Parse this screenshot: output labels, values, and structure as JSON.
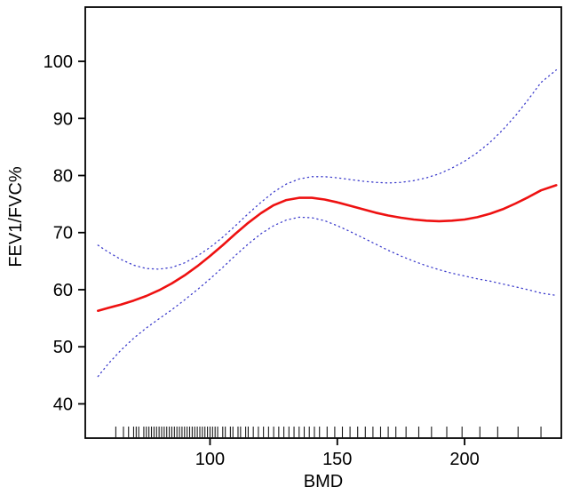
{
  "chart_data": {
    "type": "line",
    "title": "",
    "xlabel": "BMD",
    "ylabel": "FEV1/FVC%",
    "xlim": [
      51,
      238
    ],
    "ylim": [
      34,
      109.5
    ],
    "xticks": [
      100,
      150,
      200
    ],
    "yticks": [
      40,
      50,
      60,
      70,
      80,
      90,
      100
    ],
    "grid": false,
    "legend": "none",
    "x": [
      56,
      60,
      65,
      70,
      75,
      80,
      85,
      90,
      95,
      100,
      105,
      110,
      115,
      120,
      125,
      130,
      135,
      140,
      145,
      150,
      155,
      160,
      165,
      170,
      175,
      180,
      185,
      190,
      195,
      200,
      205,
      210,
      215,
      220,
      225,
      230,
      236
    ],
    "series": [
      {
        "name": "fitted-curve",
        "color": "#ee1111",
        "style": "solid",
        "width": 2.6,
        "values": [
          56.3,
          56.8,
          57.4,
          58.1,
          58.9,
          59.9,
          61.1,
          62.5,
          64.1,
          65.9,
          67.8,
          69.8,
          71.7,
          73.4,
          74.8,
          75.7,
          76.1,
          76.1,
          75.8,
          75.3,
          74.7,
          74.1,
          73.5,
          73.0,
          72.6,
          72.3,
          72.1,
          72.0,
          72.1,
          72.3,
          72.7,
          73.3,
          74.1,
          75.1,
          76.2,
          77.4,
          78.3
        ]
      },
      {
        "name": "upper-confidence",
        "color": "#3d3dcc",
        "style": "dotted",
        "width": 1.3,
        "values": [
          67.8,
          66.6,
          65.3,
          64.3,
          63.7,
          63.6,
          63.9,
          64.7,
          65.9,
          67.4,
          69.2,
          71.2,
          73.3,
          75.3,
          77.1,
          78.5,
          79.4,
          79.8,
          79.8,
          79.6,
          79.3,
          79.0,
          78.8,
          78.7,
          78.8,
          79.1,
          79.6,
          80.3,
          81.3,
          82.5,
          84.0,
          85.8,
          88.0,
          90.5,
          93.3,
          96.3,
          98.5
        ]
      },
      {
        "name": "lower-confidence",
        "color": "#3d3dcc",
        "style": "dotted",
        "width": 1.3,
        "values": [
          44.8,
          47.0,
          49.4,
          51.5,
          53.3,
          54.9,
          56.5,
          58.2,
          60.0,
          61.9,
          63.9,
          66.0,
          68.0,
          69.8,
          71.2,
          72.2,
          72.7,
          72.6,
          72.1,
          71.2,
          70.2,
          69.1,
          68.0,
          66.9,
          65.9,
          65.0,
          64.2,
          63.5,
          62.9,
          62.4,
          61.9,
          61.5,
          61.0,
          60.5,
          60.0,
          59.4,
          59.0
        ]
      }
    ],
    "rug_x": [
      63,
      66,
      68,
      70,
      71,
      72,
      74,
      75,
      76,
      77,
      78,
      79,
      80,
      81,
      82,
      83,
      84,
      85,
      86,
      87,
      88,
      89,
      90,
      91,
      92,
      93,
      94,
      95,
      96,
      97,
      98,
      99,
      100,
      101,
      102,
      103,
      105,
      106,
      108,
      109,
      111,
      112,
      114,
      115,
      117,
      119,
      121,
      123,
      125,
      127,
      129,
      131,
      133,
      135,
      137,
      139,
      141,
      143,
      146,
      149,
      152,
      155,
      158,
      161,
      164,
      167,
      170,
      173,
      177,
      182,
      187,
      193,
      199,
      206,
      213,
      221,
      230
    ]
  },
  "colors": {
    "axis": "#000000",
    "background": "#ffffff",
    "rug": "#1a1a1a",
    "fit_line": "#ee1111",
    "ci_line": "#3d3dcc"
  }
}
